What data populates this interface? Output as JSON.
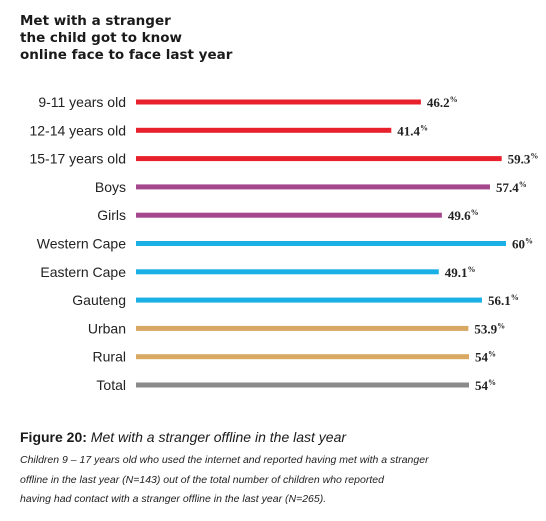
{
  "chart_data": {
    "type": "bar",
    "orientation": "horizontal",
    "title": "Met with a stranger\nthe child got to know\nonline face to face last year",
    "categories": [
      "9-11 years old",
      "12-14 years old",
      "15-17 years old",
      "Boys",
      "Girls",
      "Western Cape",
      "Eastern Cape",
      "Gauteng",
      "Urban",
      "Rural",
      "Total"
    ],
    "values": [
      46.2,
      41.4,
      59.3,
      57.4,
      49.6,
      60,
      49.1,
      56.1,
      53.9,
      54,
      54
    ],
    "value_labels": [
      "46.2",
      "41.4",
      "59.3",
      "57.4",
      "49.6",
      "60",
      "49.1",
      "56.1",
      "53.9",
      "54",
      "54"
    ],
    "unit": "%",
    "bar_colors": [
      "#e8202b",
      "#e8202b",
      "#e8202b",
      "#a4478d",
      "#a4478d",
      "#1ab0e6",
      "#1ab0e6",
      "#1ab0e6",
      "#d9a862",
      "#d9a862",
      "#8a8a8a"
    ],
    "xlim": [
      0,
      60
    ],
    "grid": false,
    "legend": "none"
  },
  "caption": {
    "figure_number": "Figure 20:",
    "figure_text": "Met with a stranger offline in the last year",
    "note_lines": [
      "Children 9 – 17 years old who used the internet and reported having met with a stranger",
      "offline in the last year (N=143) out of the total number of children who reported",
      "having had contact with a stranger offline in the last year (N=265)."
    ]
  }
}
